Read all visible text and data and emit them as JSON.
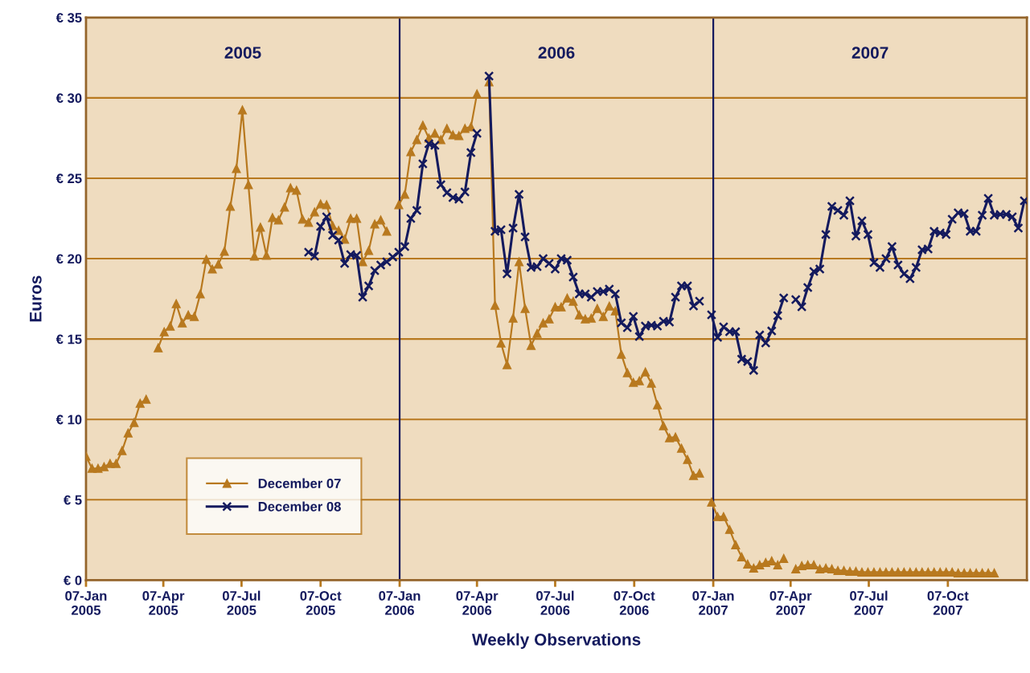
{
  "chart_data": {
    "type": "line",
    "xlabel": "Weekly Observations",
    "ylabel": "Euros",
    "annotations": [
      "2005",
      "2006",
      "2007"
    ],
    "x": [
      "2005-01-07",
      "2005-01-14",
      "2005-01-21",
      "2005-01-28",
      "2005-02-04",
      "2005-02-11",
      "2005-02-18",
      "2005-02-25",
      "2005-03-04",
      "2005-03-11",
      "2005-03-18",
      "2005-03-25",
      "2005-04-01",
      "2005-04-08",
      "2005-04-15",
      "2005-04-22",
      "2005-04-29",
      "2005-05-06",
      "2005-05-13",
      "2005-05-20",
      "2005-05-27",
      "2005-06-03",
      "2005-06-10",
      "2005-06-17",
      "2005-06-24",
      "2005-07-01",
      "2005-07-08",
      "2005-07-15",
      "2005-07-22",
      "2005-07-29",
      "2005-08-05",
      "2005-08-12",
      "2005-08-19",
      "2005-08-26",
      "2005-09-02",
      "2005-09-09",
      "2005-09-16",
      "2005-09-23",
      "2005-09-30",
      "2005-10-07",
      "2005-10-14",
      "2005-10-21",
      "2005-10-28",
      "2005-11-04",
      "2005-11-11",
      "2005-11-18",
      "2005-11-25",
      "2005-12-02",
      "2005-12-09",
      "2005-12-16",
      "2005-12-23",
      "2005-12-30",
      "2006-01-06",
      "2006-01-13",
      "2006-01-20",
      "2006-01-27",
      "2006-02-03",
      "2006-02-10",
      "2006-02-17",
      "2006-02-24",
      "2006-03-03",
      "2006-03-10",
      "2006-03-17",
      "2006-03-24",
      "2006-03-31",
      "2006-04-07",
      "2006-04-14",
      "2006-04-21",
      "2006-04-28",
      "2006-05-05",
      "2006-05-12",
      "2006-05-19",
      "2006-05-26",
      "2006-06-02",
      "2006-06-09",
      "2006-06-16",
      "2006-06-23",
      "2006-06-30",
      "2006-07-07",
      "2006-07-14",
      "2006-07-21",
      "2006-07-28",
      "2006-08-04",
      "2006-08-11",
      "2006-08-18",
      "2006-08-25",
      "2006-09-01",
      "2006-09-08",
      "2006-09-15",
      "2006-09-22",
      "2006-09-29",
      "2006-10-06",
      "2006-10-13",
      "2006-10-20",
      "2006-10-27",
      "2006-11-03",
      "2006-11-10",
      "2006-11-17",
      "2006-11-24",
      "2006-12-01",
      "2006-12-08",
      "2006-12-15",
      "2006-12-22",
      "2006-12-29",
      "2007-01-05",
      "2007-01-12",
      "2007-01-19",
      "2007-01-26",
      "2007-02-02",
      "2007-02-09",
      "2007-02-16",
      "2007-02-23",
      "2007-03-02",
      "2007-03-09",
      "2007-03-16",
      "2007-03-23",
      "2007-03-30",
      "2007-04-06",
      "2007-04-13",
      "2007-04-20",
      "2007-04-27",
      "2007-05-04",
      "2007-05-11",
      "2007-05-18",
      "2007-05-25",
      "2007-06-01",
      "2007-06-08",
      "2007-06-15",
      "2007-06-22",
      "2007-06-29",
      "2007-07-06",
      "2007-07-13",
      "2007-07-20",
      "2007-07-27",
      "2007-08-03",
      "2007-08-10",
      "2007-08-17",
      "2007-08-24",
      "2007-08-31",
      "2007-09-07",
      "2007-09-14",
      "2007-09-21",
      "2007-09-28",
      "2007-10-05",
      "2007-10-12",
      "2007-10-19",
      "2007-10-26",
      "2007-11-02",
      "2007-11-09",
      "2007-11-16",
      "2007-11-23",
      "2007-11-30",
      "2007-12-07",
      "2007-12-14",
      "2007-12-21",
      "2007-12-28",
      "2008-01-04"
    ],
    "series": [
      {
        "name": "December 07",
        "color": "#b8791f",
        "marker": "triangle",
        "values": [
          7.7,
          6.95,
          6.95,
          7.05,
          7.25,
          7.25,
          8.05,
          9.15,
          9.8,
          11.0,
          11.25,
          null,
          14.45,
          15.45,
          15.8,
          17.2,
          16.0,
          16.5,
          16.4,
          17.8,
          19.95,
          19.35,
          19.65,
          20.45,
          23.25,
          25.6,
          29.25,
          24.6,
          20.15,
          21.95,
          20.2,
          22.55,
          22.4,
          23.2,
          24.4,
          24.25,
          22.45,
          22.25,
          22.9,
          23.4,
          23.35,
          22.05,
          21.75,
          21.2,
          22.5,
          22.5,
          19.8,
          20.5,
          22.15,
          22.4,
          21.7,
          null,
          23.35,
          24.0,
          26.65,
          27.4,
          28.3,
          27.5,
          27.8,
          27.4,
          28.1,
          27.7,
          27.65,
          28.1,
          28.2,
          30.25,
          null,
          31.0,
          17.1,
          14.75,
          13.4,
          16.3,
          19.8,
          16.9,
          14.6,
          15.35,
          16.0,
          16.25,
          17.0,
          17.0,
          17.55,
          17.35,
          16.5,
          16.25,
          16.3,
          16.9,
          16.4,
          17.05,
          16.75,
          14.05,
          12.9,
          12.3,
          12.4,
          12.95,
          12.25,
          10.9,
          9.6,
          8.85,
          8.9,
          8.2,
          7.5,
          6.5,
          6.65,
          null,
          4.85,
          3.95,
          3.95,
          3.15,
          2.2,
          1.45,
          1.0,
          0.75,
          0.95,
          1.1,
          1.2,
          0.95,
          1.35,
          null,
          0.7,
          0.9,
          0.95,
          0.95,
          0.7,
          0.75,
          0.7,
          0.6,
          0.6,
          0.55,
          0.55,
          0.5,
          0.5,
          0.5,
          0.5,
          0.5,
          0.5,
          0.5,
          0.5,
          0.5,
          0.5,
          0.5,
          0.5,
          0.5,
          0.5,
          0.5,
          0.5,
          0.45,
          0.45,
          0.45,
          0.45,
          0.45,
          0.45,
          0.45,
          null,
          null,
          null,
          null,
          null
        ]
      },
      {
        "name": "December 08",
        "color": "#141a5e",
        "marker": "cross",
        "values": [
          null,
          null,
          null,
          null,
          null,
          null,
          null,
          null,
          null,
          null,
          null,
          null,
          null,
          null,
          null,
          null,
          null,
          null,
          null,
          null,
          null,
          null,
          null,
          null,
          null,
          null,
          null,
          null,
          null,
          null,
          null,
          null,
          null,
          null,
          null,
          null,
          null,
          20.4,
          20.15,
          22.0,
          22.6,
          21.45,
          21.15,
          19.7,
          20.25,
          20.2,
          17.6,
          18.3,
          19.25,
          19.6,
          19.8,
          20.1,
          20.4,
          20.75,
          22.5,
          23.0,
          25.9,
          27.15,
          27.05,
          24.6,
          24.1,
          23.8,
          23.7,
          24.15,
          26.6,
          27.8,
          null,
          31.35,
          21.7,
          21.8,
          19.05,
          21.9,
          24.0,
          21.35,
          19.45,
          19.5,
          20.0,
          19.7,
          19.35,
          20.0,
          19.9,
          18.85,
          17.8,
          17.8,
          17.6,
          17.95,
          17.95,
          18.1,
          17.8,
          16.0,
          15.7,
          16.4,
          15.15,
          15.8,
          15.85,
          15.8,
          16.1,
          16.05,
          17.6,
          18.3,
          18.3,
          17.05,
          17.35,
          null,
          16.5,
          15.1,
          15.75,
          15.45,
          15.45,
          13.75,
          13.6,
          13.05,
          15.25,
          14.75,
          15.5,
          16.45,
          17.55,
          null,
          17.45,
          17.0,
          18.2,
          19.2,
          19.35,
          21.5,
          23.25,
          23.0,
          22.7,
          23.6,
          21.4,
          22.35,
          21.5,
          19.75,
          19.45,
          20.0,
          20.75,
          19.6,
          19.05,
          18.75,
          19.45,
          20.55,
          20.6,
          21.7,
          21.6,
          21.5,
          22.45,
          22.85,
          22.8,
          21.7,
          21.7,
          22.7,
          23.75,
          22.7,
          22.75,
          22.75,
          22.6,
          21.9,
          23.6
        ]
      }
    ],
    "xlim": [
      "2005-01-07",
      "2008-01-07"
    ],
    "xticks": [
      {
        "value": "2005-01-07",
        "label": "07-Jan\n2005"
      },
      {
        "value": "2005-04-07",
        "label": "07-Apr\n2005"
      },
      {
        "value": "2005-07-07",
        "label": "07-Jul\n2005"
      },
      {
        "value": "2005-10-07",
        "label": "07-Oct\n2005"
      },
      {
        "value": "2006-01-07",
        "label": "07-Jan\n2006"
      },
      {
        "value": "2006-04-07",
        "label": "07-Apr\n2006"
      },
      {
        "value": "2006-07-07",
        "label": "07-Jul\n2006"
      },
      {
        "value": "2006-10-07",
        "label": "07-Oct\n2006"
      },
      {
        "value": "2007-01-07",
        "label": "07-Jan\n2007"
      },
      {
        "value": "2007-04-07",
        "label": "07-Apr\n2007"
      },
      {
        "value": "2007-07-07",
        "label": "07-Jul\n2007"
      },
      {
        "value": "2007-10-07",
        "label": "07-Oct\n2007"
      }
    ],
    "ylim": [
      0,
      35
    ],
    "yticks": [
      {
        "value": 0,
        "label": "€ 0"
      },
      {
        "value": 5,
        "label": "€ 5"
      },
      {
        "value": 10,
        "label": "€ 10"
      },
      {
        "value": 15,
        "label": "€ 15"
      },
      {
        "value": 20,
        "label": "€ 20"
      },
      {
        "value": 25,
        "label": "€ 25"
      },
      {
        "value": 30,
        "label": "€ 30"
      },
      {
        "value": 35,
        "label": "€ 35"
      }
    ],
    "ref_lines": [
      {
        "axis": "x",
        "value": "2006-01-07",
        "color": "#141a5e"
      },
      {
        "axis": "x",
        "value": "2007-01-07",
        "color": "#141a5e"
      }
    ],
    "grid": "y",
    "legend": "bottom left",
    "line_style": "solid"
  }
}
